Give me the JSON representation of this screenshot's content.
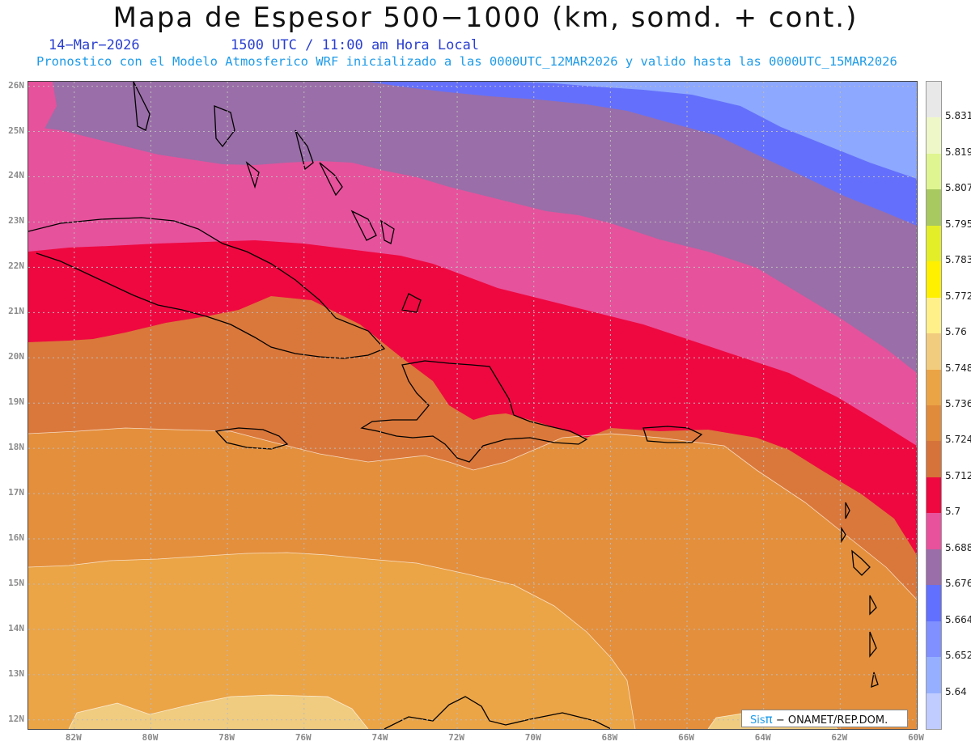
{
  "header": {
    "title": "Mapa de Espesor 500−1000 (km, somd. + cont.)",
    "date": "14−Mar−2026",
    "time": "1500 UTC / 11:00 am Hora Local",
    "subtitle": "Pronostico con el Modelo Atmosferico WRF inicializado a las 0000UTC_12MAR2026 y valido hasta las  0000UTC_15MAR2026"
  },
  "map": {
    "lat_labels": [
      "26N",
      "25N",
      "24N",
      "23N",
      "22N",
      "21N",
      "20N",
      "19N",
      "18N",
      "17N",
      "16N",
      "15N",
      "14N",
      "13N",
      "12N"
    ],
    "lon_labels": [
      "82W",
      "80W",
      "78W",
      "76W",
      "74W",
      "72W",
      "70W",
      "68W",
      "66W",
      "64W",
      "62W",
      "60W"
    ],
    "extent": {
      "lon_min": -83.2,
      "lon_max": -60.0,
      "lat_min": 11.8,
      "lat_max": 26.1
    }
  },
  "colorbar": {
    "levels": [
      "5.831",
      "5.819",
      "5.807",
      "5.795",
      "5.783",
      "5.772",
      "5.76",
      "5.748",
      "5.736",
      "5.724",
      "5.712",
      "5.7",
      "5.688",
      "5.676",
      "5.664",
      "5.652",
      "5.64"
    ],
    "colors": [
      "#e8e8e8",
      "#eef7c8",
      "#dff592",
      "#a8c860",
      "#e3ee28",
      "#fff000",
      "#fff08a",
      "#f2cc7e",
      "#eba445",
      "#e08a3c",
      "#d6733a",
      "#ef0840",
      "#e8529c",
      "#9a6ea8",
      "#6270ff",
      "#8090ff",
      "#96b0ff",
      "#c0ccff"
    ]
  },
  "zones": {
    "z1": "#f0cc80",
    "z2": "#eba446",
    "z3": "#e48f3c",
    "z4": "#da783b",
    "z5": "#ef0840",
    "z6": "#e6529c",
    "z7": "#9a6ea8",
    "z8": "#6470fb",
    "z9": "#8da8ff"
  },
  "credit": {
    "brand": "Sis",
    "pi": "π",
    "org": "− ONAMET/REP.DOM."
  }
}
